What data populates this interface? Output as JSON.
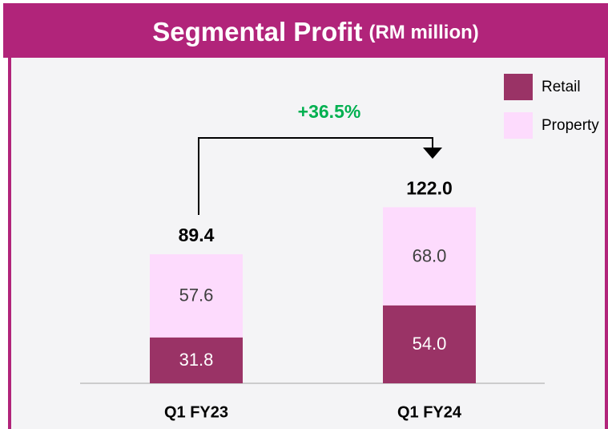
{
  "chart_data": {
    "type": "stacked-bar",
    "title": "Segmental Profit",
    "unit_label": "(RM million)",
    "annotation": "+36.5%",
    "categories": [
      "Q1 FY23",
      "Q1 FY24"
    ],
    "series": [
      {
        "name": "Retail",
        "color": "#9a3366",
        "values": [
          31.8,
          54
        ],
        "value_labels": [
          "31.8",
          "54.0"
        ]
      },
      {
        "name": "Property",
        "color": "#fddbfd",
        "values": [
          57.6,
          68
        ],
        "value_labels": [
          "57.6",
          "68.0"
        ]
      }
    ],
    "total_labels": [
      "89.4",
      "122.0"
    ]
  }
}
